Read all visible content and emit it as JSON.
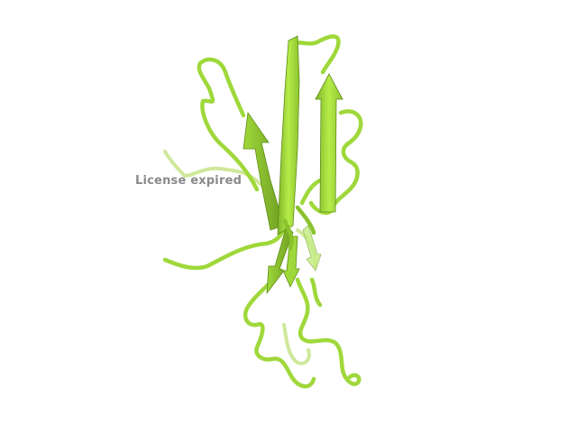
{
  "viewer": {
    "background_color": "#ffffff",
    "structure_color": "#a8e43a",
    "structure_shadow_color": "#6a9a1c",
    "watermark_text": "License expired",
    "watermark_color": "#8a8a8a",
    "representation": "cartoon"
  }
}
